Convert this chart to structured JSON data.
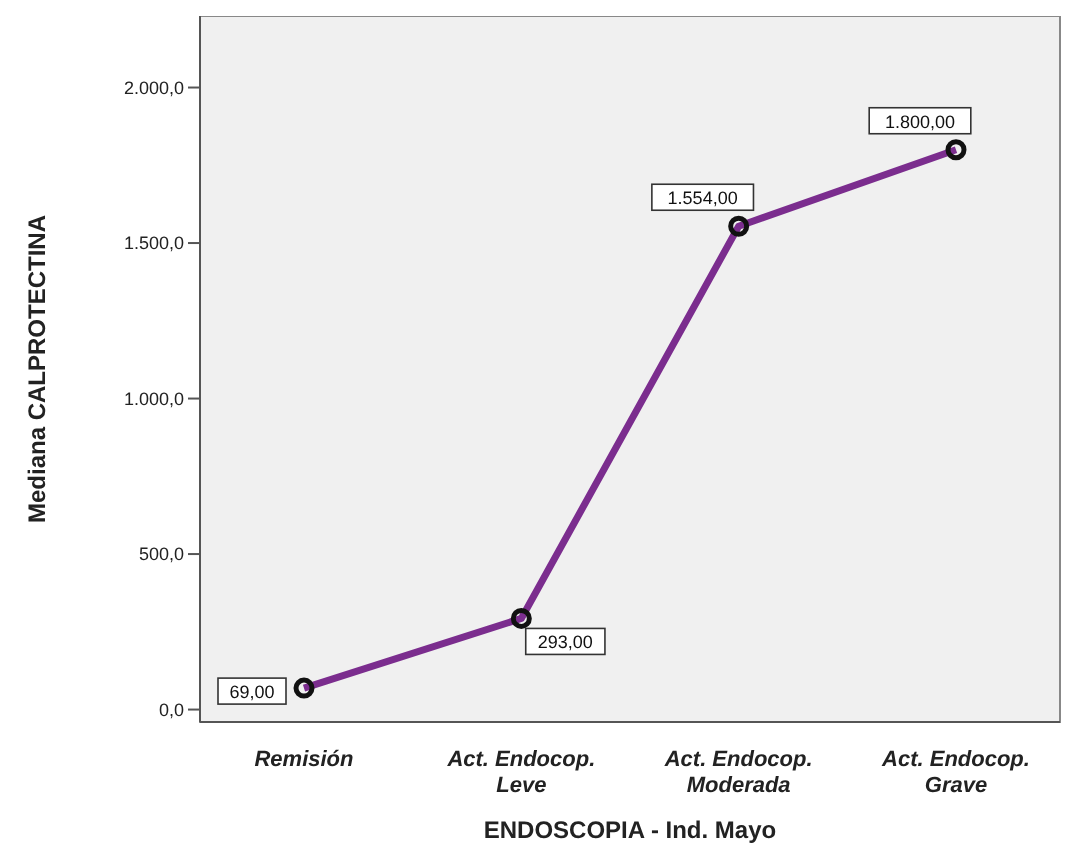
{
  "chart_data": {
    "type": "line",
    "xlabel": "ENDOSCOPIA - Ind. Mayo",
    "ylabel": "Mediana CALPROTECTINA",
    "categories": [
      "Remisión",
      "Act. Endocop. Leve",
      "Act. Endocop. Moderada",
      "Act. Endocop. Grave"
    ],
    "series": [
      {
        "color": "#7b2d8e",
        "values": [
          69,
          293,
          1554,
          1800
        ],
        "value_labels": [
          "69,00",
          "293,00",
          "1.554,00",
          "1.800,00"
        ]
      }
    ],
    "ylim": [
      -40,
      2230
    ],
    "yticks": [
      {
        "value": 0,
        "label": "0,0"
      },
      {
        "value": 500,
        "label": "500,0"
      },
      {
        "value": 1000,
        "label": "1.000,0"
      },
      {
        "value": 1500,
        "label": "1.500,0"
      },
      {
        "value": 2000,
        "label": "2.000,0"
      }
    ],
    "marker": "circle",
    "line_style": "solid",
    "legend": false
  }
}
